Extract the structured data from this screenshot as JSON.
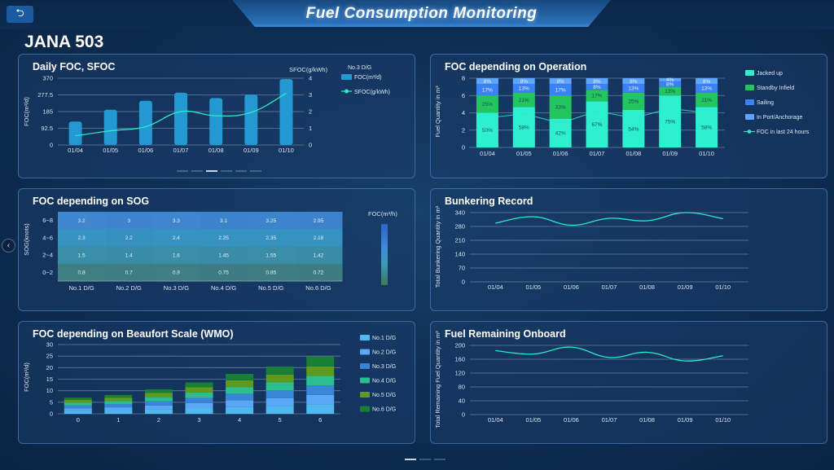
{
  "header": {
    "title": "Fuel Consumption Monitoring",
    "back_icon": "return-icon",
    "vessel_name": "JANA 503"
  },
  "nav": {
    "prev_icon": "chevron-left-icon"
  },
  "colors": {
    "accent_cyan": "#2ee8c9",
    "bar_blue": "#2299d0",
    "jacked_up": "#2ef0cf",
    "standby": "#22c55e",
    "sailing": "#3b82f6",
    "in_port": "#60a5fa"
  },
  "chart_data": [
    {
      "id": "daily-foc-sfoc",
      "type": "bar",
      "title": "Daily FOC, SFOC",
      "subtitle": "No.3 D/G",
      "categories": [
        "01/04",
        "01/05",
        "01/06",
        "01/07",
        "01/08",
        "01/09",
        "01/10"
      ],
      "series": [
        {
          "name": "FOC(m³/d)",
          "type": "bar",
          "axis": "left",
          "values": [
            130,
            195,
            245,
            290,
            260,
            280,
            365
          ]
        },
        {
          "name": "SFOC(g/kWh)",
          "type": "line",
          "axis": "right",
          "values": [
            0.55,
            0.85,
            1.1,
            2.0,
            1.75,
            1.95,
            3.1
          ]
        }
      ],
      "ylabel": "FOC(m³/d)",
      "y2label": "SFOC(g/kWh)",
      "ylim": [
        0,
        370
      ],
      "y2lim": [
        0,
        4
      ],
      "yticks": [
        "0",
        "92.5",
        "185",
        "277.5",
        "370"
      ],
      "y2ticks": [
        "0",
        "1",
        "2",
        "3",
        "4"
      ],
      "legend": "right",
      "pager": {
        "count": 6,
        "active": 2
      }
    },
    {
      "id": "foc-operation",
      "type": "bar",
      "stacked": true,
      "title": "FOC depending on Operation",
      "categories": [
        "01/04",
        "01/05",
        "01/06",
        "01/07",
        "01/08",
        "01/09",
        "01/10"
      ],
      "series": [
        {
          "name": "Jacked up",
          "percents": [
            "50%",
            "58%",
            "42%",
            "67%",
            "54%",
            "75%",
            "58%"
          ],
          "values": [
            4.0,
            4.67,
            3.33,
            5.33,
            4.33,
            6.0,
            4.67
          ]
        },
        {
          "name": "Standby Infield",
          "percents": [
            "25%",
            "21%",
            "33%",
            "17%",
            "25%",
            "13%",
            "21%"
          ],
          "values": [
            2.0,
            1.67,
            2.67,
            1.33,
            2.0,
            1.0,
            1.67
          ]
        },
        {
          "name": "Sailing",
          "percents": [
            "17%",
            "13%",
            "17%",
            "8%",
            "13%",
            "8%",
            "13%"
          ],
          "values": [
            1.33,
            1.0,
            1.33,
            0.67,
            1.0,
            0.67,
            1.0
          ]
        },
        {
          "name": "In Port/Anchorage",
          "percents": [
            "8%",
            "8%",
            "8%",
            "8%",
            "8%",
            "4%",
            "8%"
          ],
          "values": [
            0.67,
            0.67,
            0.67,
            0.67,
            0.67,
            0.33,
            0.67
          ]
        }
      ],
      "line": {
        "name": "FOC in last 24 hours",
        "values": [
          3.4,
          3.9,
          2.8,
          4.2,
          3.4,
          4.5,
          4.0
        ]
      },
      "ylabel": "Fuel Quantity in m³",
      "ylim": [
        0,
        8
      ],
      "yticks": [
        "0",
        "2",
        "4",
        "6",
        "8"
      ],
      "legend": "right"
    },
    {
      "id": "foc-sog",
      "type": "heatmap",
      "title": "FOC depending on SOG",
      "xcategories": [
        "No.1 D/G",
        "No.2 D/G",
        "No.3 D/G",
        "No.4 D/G",
        "No.5 D/G",
        "No.6 D/G"
      ],
      "ycategories": [
        "6~8",
        "4~6",
        "2~4",
        "0~2"
      ],
      "values": [
        [
          "3.2",
          "3",
          "3.3",
          "3.1",
          "3.25",
          "2.95"
        ],
        [
          "2.3",
          "2.2",
          "2.4",
          "2.25",
          "2.35",
          "2.18"
        ],
        [
          "1.5",
          "1.4",
          "1.6",
          "1.45",
          "1.55",
          "1.42"
        ],
        [
          "0.8",
          "0.7",
          "0.9",
          "0.75",
          "0.85",
          "0.72"
        ]
      ],
      "ylabel": "SOG(knots)",
      "colorbar_label": "FOC(m³/h)",
      "legend": "right"
    },
    {
      "id": "bunkering-record",
      "type": "line",
      "title": "Bunkering Record",
      "categories": [
        "01/04",
        "01/05",
        "01/06",
        "01/07",
        "01/08",
        "01/09",
        "01/10"
      ],
      "values": [
        288,
        320,
        278,
        312,
        300,
        340,
        310
      ],
      "ylabel": "Total Bunkering Quantity in m³",
      "ylim": [
        0,
        340
      ],
      "yticks": [
        "0",
        "70",
        "140",
        "210",
        "280",
        "340"
      ]
    },
    {
      "id": "foc-beaufort",
      "type": "bar",
      "stacked": true,
      "title": "FOC depending on Beaufort Scale (WMO)",
      "categories": [
        "0",
        "1",
        "2",
        "3",
        "4",
        "5",
        "6"
      ],
      "series": [
        {
          "name": "No.1 D/G",
          "values": [
            1.2,
            1.4,
            1.8,
            2.3,
            2.9,
            3.4,
            4.1
          ]
        },
        {
          "name": "No.2 D/G",
          "values": [
            1.2,
            1.4,
            1.8,
            2.3,
            2.9,
            3.4,
            4.1
          ]
        },
        {
          "name": "No.3 D/G",
          "values": [
            1.2,
            1.4,
            1.8,
            2.3,
            2.9,
            3.4,
            4.1
          ]
        },
        {
          "name": "No.4 D/G",
          "values": [
            1.2,
            1.4,
            1.8,
            2.3,
            2.9,
            3.4,
            4.1
          ]
        },
        {
          "name": "No.5 D/G",
          "values": [
            1.2,
            1.4,
            1.8,
            2.3,
            2.9,
            3.4,
            4.1
          ]
        },
        {
          "name": "No.6 D/G",
          "values": [
            1.0,
            1.2,
            1.6,
            2.1,
            2.8,
            3.5,
            4.3
          ]
        }
      ],
      "ylabel": "FOC(m³/d)",
      "ylim": [
        0,
        30
      ],
      "yticks": [
        "0",
        "5",
        "10",
        "15",
        "20",
        "25",
        "30"
      ],
      "legend": "right"
    },
    {
      "id": "fuel-remaining",
      "type": "line",
      "title": "Fuel Remaining Onboard",
      "categories": [
        "01/04",
        "01/05",
        "01/06",
        "01/07",
        "01/08",
        "01/09",
        "01/10"
      ],
      "values": [
        185,
        175,
        195,
        165,
        180,
        155,
        170
      ],
      "ylabel": "Total Remaining Fuel Quantity in m³",
      "ylim": [
        0,
        200
      ],
      "yticks": [
        "0",
        "40",
        "80",
        "120",
        "160",
        "200"
      ]
    }
  ],
  "bottom_pager": {
    "count": 3,
    "active": 0
  }
}
